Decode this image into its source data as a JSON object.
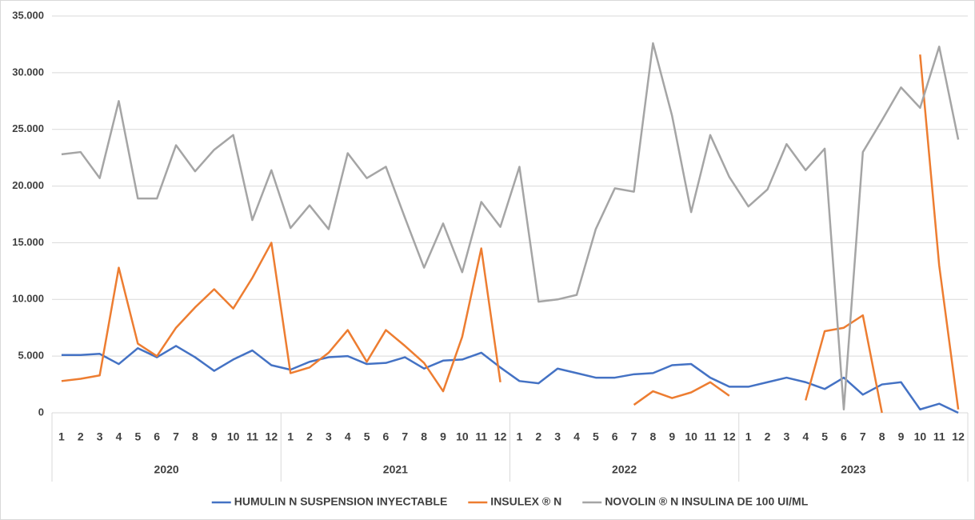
{
  "chart_data": {
    "type": "line",
    "categories": [
      "1",
      "2",
      "3",
      "4",
      "5",
      "6",
      "7",
      "8",
      "9",
      "10",
      "11",
      "12",
      "1",
      "2",
      "3",
      "4",
      "5",
      "6",
      "7",
      "8",
      "9",
      "10",
      "11",
      "12",
      "1",
      "2",
      "3",
      "4",
      "5",
      "6",
      "7",
      "8",
      "9",
      "10",
      "11",
      "12",
      "1",
      "2",
      "3",
      "4",
      "5",
      "6",
      "7",
      "8",
      "9",
      "10",
      "11",
      "12"
    ],
    "category_groups": [
      "2020",
      "2021",
      "2022",
      "2023"
    ],
    "series": [
      {
        "name": "HUMULIN N SUSPENSION INYECTABLE",
        "color": "#4472c4",
        "values": [
          5100,
          5100,
          5200,
          4300,
          5700,
          4900,
          5900,
          4900,
          3700,
          4700,
          5500,
          4200,
          3800,
          4500,
          4900,
          5000,
          4300,
          4400,
          4900,
          3900,
          4600,
          4700,
          5300,
          4000,
          2800,
          2600,
          3900,
          3500,
          3100,
          3100,
          3400,
          3500,
          4200,
          4300,
          3100,
          2300,
          2300,
          2700,
          3100,
          2700,
          2100,
          3100,
          1600,
          2500,
          2700,
          300,
          800,
          0
        ]
      },
      {
        "name": "INSULEX ® N",
        "color": "#ed7d31",
        "values": [
          2800,
          3000,
          3300,
          12800,
          6100,
          5000,
          7500,
          9300,
          10900,
          9200,
          11900,
          15000,
          3500,
          4000,
          5300,
          7300,
          4500,
          7300,
          5900,
          4400,
          1900,
          6700,
          14500,
          2700,
          null,
          null,
          null,
          null,
          null,
          null,
          700,
          1900,
          1300,
          1800,
          2700,
          1500,
          null,
          null,
          null,
          1100,
          7200,
          7500,
          8600,
          0,
          null,
          31600,
          13000,
          300
        ]
      },
      {
        "name": "NOVOLIN ® N INSULINA DE 100 UI/ML",
        "color": "#a5a5a5",
        "values": [
          22800,
          23000,
          20700,
          27500,
          18900,
          18900,
          23600,
          21300,
          23200,
          24500,
          17000,
          21400,
          16300,
          18300,
          16200,
          22900,
          20700,
          21700,
          17200,
          12800,
          16700,
          12400,
          18600,
          16400,
          21700,
          9800,
          10000,
          10400,
          16200,
          19800,
          19500,
          32600,
          26200,
          17700,
          24500,
          20800,
          18200,
          19700,
          23700,
          21400,
          23300,
          300,
          23000,
          25800,
          28700,
          26900,
          32300,
          24100
        ]
      }
    ],
    "ylim": [
      0,
      35000
    ],
    "yticks": [
      0,
      {
        "value": 5000,
        "label": "5.000"
      },
      {
        "value": 10000,
        "label": "10.000"
      },
      {
        "value": 15000,
        "label": "15.000"
      },
      {
        "value": 20000,
        "label": "20.000"
      },
      {
        "value": 25000,
        "label": "25.000"
      },
      {
        "value": 30000,
        "label": "30.000"
      },
      {
        "value": 35000,
        "label": "35.000"
      }
    ],
    "grid": true,
    "legend": "bottom"
  }
}
